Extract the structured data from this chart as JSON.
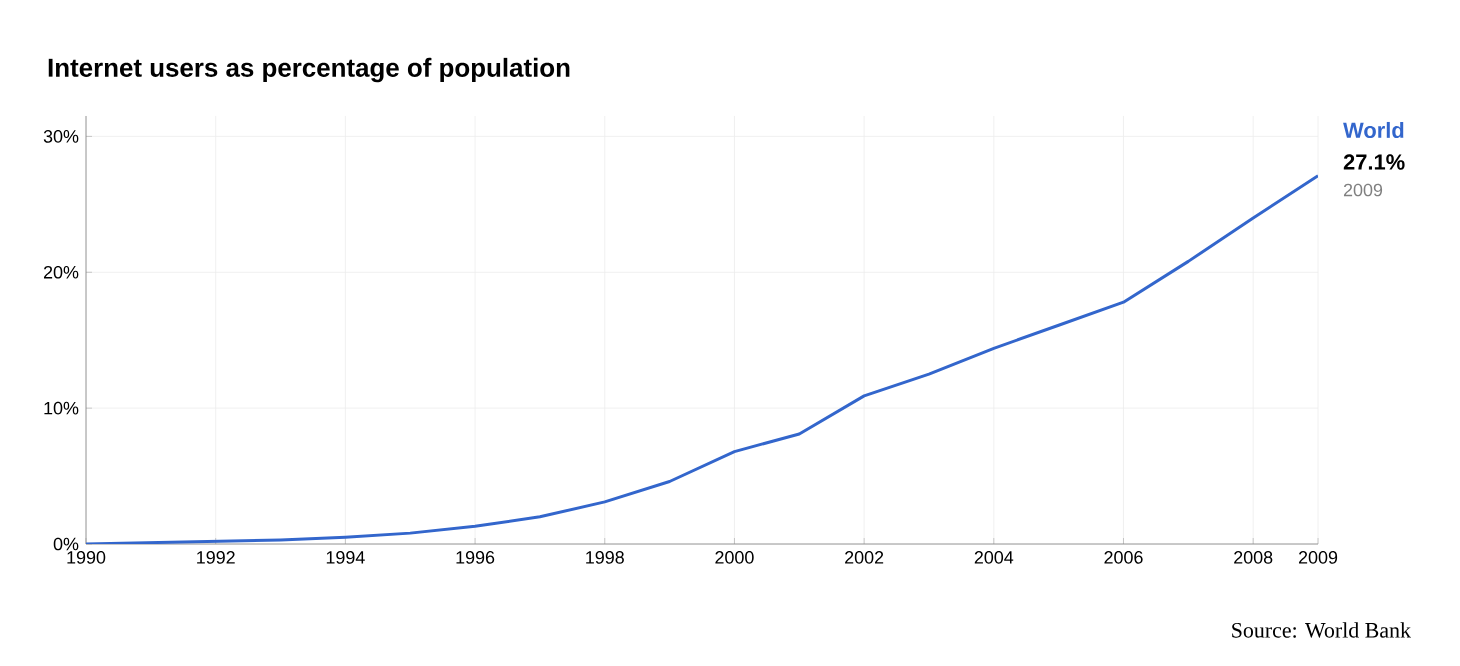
{
  "chart_data": {
    "type": "line",
    "title": "Internet users as percentage of population",
    "x": [
      1990,
      1991,
      1992,
      1993,
      1994,
      1995,
      1996,
      1997,
      1998,
      1999,
      2000,
      2001,
      2002,
      2003,
      2004,
      2005,
      2006,
      2007,
      2008,
      2009
    ],
    "series": [
      {
        "name": "World",
        "color": "#3366cc",
        "values": [
          0,
          0.1,
          0.2,
          0.3,
          0.5,
          0.8,
          1.3,
          2.0,
          3.1,
          4.6,
          6.8,
          8.1,
          10.9,
          12.5,
          14.4,
          16.1,
          17.8,
          20.8,
          24.0,
          27.1
        ]
      }
    ],
    "xlim": [
      1990,
      2009
    ],
    "xticks": [
      1990,
      1992,
      1994,
      1996,
      1998,
      2000,
      2002,
      2004,
      2006,
      2008,
      2009
    ],
    "ylim": [
      0,
      31.5
    ],
    "yticks": [
      {
        "value": 0,
        "label": "0%"
      },
      {
        "value": 10,
        "label": "10%"
      },
      {
        "value": 20,
        "label": "20%"
      },
      {
        "value": 30,
        "label": "30%"
      }
    ],
    "grid": true,
    "annotations": [
      "27.1%",
      "2009",
      "Source: World Bank"
    ]
  }
}
